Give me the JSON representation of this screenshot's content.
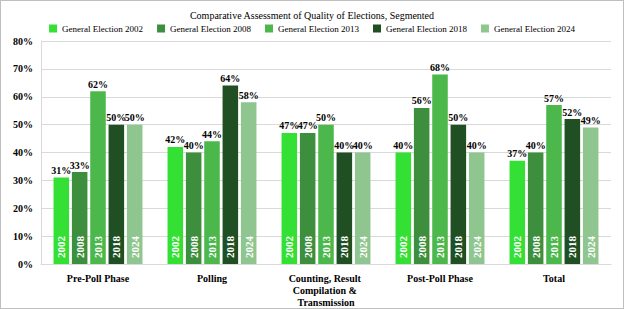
{
  "chart_data": {
    "type": "bar",
    "title": "Comparative Assessment of Quality of Elections, Segmented",
    "categories": [
      "Pre-Poll Phase",
      "Polling",
      "Counting, Result Compilation & Transmission",
      "Post-Poll Phase",
      "Total"
    ],
    "series": [
      {
        "name": "General Election 2002",
        "inside_label": "2002",
        "color": "#33e033",
        "values": [
          31,
          42,
          47,
          40,
          37
        ],
        "value_labels": [
          "31%",
          "42%",
          "47%",
          "40%",
          "37%"
        ]
      },
      {
        "name": "General Election 2008",
        "inside_label": "2008",
        "color": "#3d8f3d",
        "values": [
          33,
          40,
          47,
          56,
          40
        ],
        "value_labels": [
          "33%",
          "40%",
          "47%",
          "56%",
          "40%"
        ]
      },
      {
        "name": "General Election 2013",
        "inside_label": "2013",
        "color": "#4cb84c",
        "values": [
          62,
          44,
          50,
          68,
          57
        ],
        "value_labels": [
          "62%",
          "44%",
          "50%",
          "68%",
          "57%"
        ]
      },
      {
        "name": "General Election 2018",
        "inside_label": "2018",
        "color": "#1f4f22",
        "values": [
          50,
          64,
          40,
          50,
          52
        ],
        "value_labels": [
          "50%",
          "64%",
          "40%",
          "50%",
          "52%"
        ]
      },
      {
        "name": "General Election 2024",
        "inside_label": "2024",
        "color": "#8fc68f",
        "values": [
          50,
          58,
          40,
          40,
          49
        ],
        "value_labels": [
          "50%",
          "58%",
          "40%",
          "40%",
          "49%"
        ]
      }
    ],
    "ylim": [
      0,
      80
    ],
    "yticks": [
      {
        "value": 0,
        "label": "0%"
      },
      {
        "value": 10,
        "label": "10%"
      },
      {
        "value": 20,
        "label": "20%"
      },
      {
        "value": 30,
        "label": "30%"
      },
      {
        "value": 40,
        "label": "40%"
      },
      {
        "value": 50,
        "label": "50%"
      },
      {
        "value": 60,
        "label": "60%"
      },
      {
        "value": 70,
        "label": "70%"
      },
      {
        "value": 80,
        "label": "80%"
      }
    ],
    "grid": true,
    "legend": "top",
    "data_labels": true
  }
}
